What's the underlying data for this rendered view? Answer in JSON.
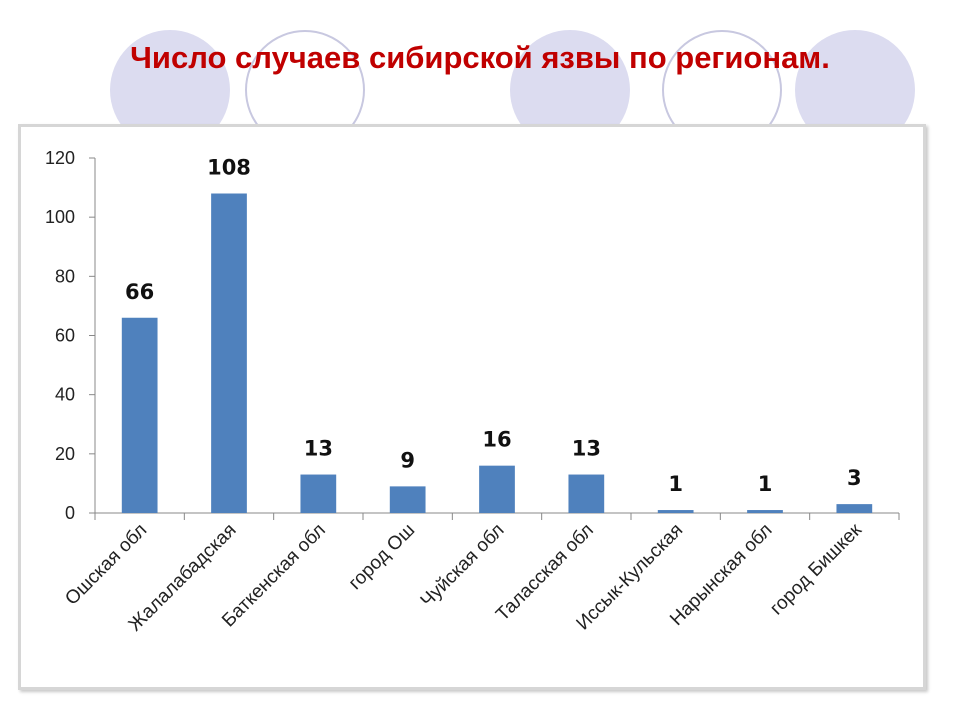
{
  "slide": {
    "title": "Число случаев сибирской язвы по регионам."
  },
  "colors": {
    "title": "#c00000",
    "bar": "#4f81bd",
    "circle_fill": "#dcdcf0",
    "circle_outline": "#c8c8e0"
  },
  "chart_data": {
    "type": "bar",
    "categories": [
      "Ошская обл",
      "Жалалабадская",
      "Баткенская обл",
      "город Ош",
      "Чуйская обл",
      "Таласская обл",
      "Иссык-Кульская",
      "Нарынская обл",
      "город Бишкек"
    ],
    "values": [
      66,
      108,
      13,
      9,
      16,
      13,
      1,
      1,
      3
    ],
    "data_labels": [
      "66",
      "108",
      "13",
      "9",
      "16",
      "13",
      "1",
      "1",
      "3"
    ],
    "ylim": [
      0,
      120
    ],
    "yticks": [
      0,
      20,
      40,
      60,
      80,
      100,
      120
    ],
    "grid": false,
    "legend": "none"
  }
}
